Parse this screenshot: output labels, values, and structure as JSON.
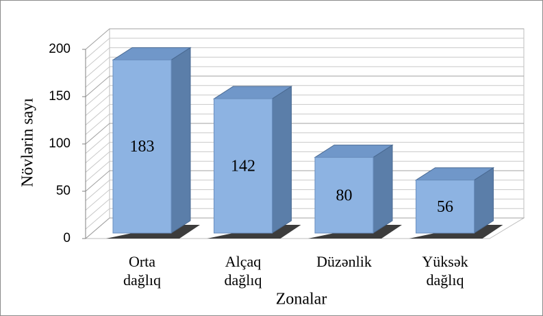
{
  "chart_data": {
    "type": "bar3d",
    "categories": [
      "Orta dağlıq",
      "Alçaq dağlıq",
      "Düzənlik",
      "Yüksək dağlıq"
    ],
    "values": [
      183,
      142,
      80,
      56
    ],
    "color": "#8db3e2",
    "ylim": [
      0,
      200
    ],
    "yticks": [
      0,
      50,
      100,
      150,
      200
    ],
    "minor_yticks": [
      10,
      20,
      30,
      40,
      60,
      70,
      80,
      90,
      110,
      120,
      130,
      140,
      160,
      170,
      180,
      190
    ],
    "grid": true,
    "ylabel": "Növlərin sayı",
    "xlabel": "Zonalar"
  }
}
